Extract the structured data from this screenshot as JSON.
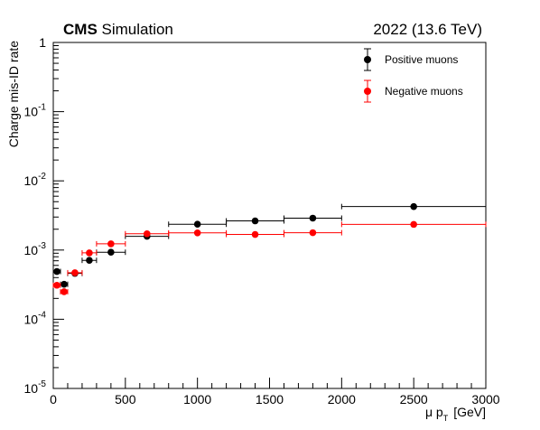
{
  "chart_data": {
    "type": "scatter",
    "header": {
      "experiment": "CMS",
      "label": "Simulation",
      "energy": "2022 (13.6 TeV)"
    },
    "xlabel": "μ p",
    "xlabel_subscript": "T",
    "xlabel_unit": "[GeV]",
    "ylabel": "Charge mis-ID rate",
    "xlim": [
      0,
      3000
    ],
    "ylim": [
      1e-05,
      1
    ],
    "yscale": "log",
    "x_tick_labels": [
      "0",
      "500",
      "1000",
      "1500",
      "2000",
      "2500",
      "3000"
    ],
    "y_tick_labels": [
      {
        "base": "10",
        "exp": "-5"
      },
      {
        "base": "10",
        "exp": "-4"
      },
      {
        "base": "10",
        "exp": "-3"
      },
      {
        "base": "10",
        "exp": "-2"
      },
      {
        "base": "10",
        "exp": "-1"
      },
      {
        "base": "1",
        "exp": ""
      }
    ],
    "grid": false,
    "legend_position": "top-right",
    "series": [
      {
        "name": "Positive muons",
        "color": "#000000",
        "points": [
          {
            "x": 25,
            "xlo": 0,
            "xhi": 50,
            "y": 0.00049
          },
          {
            "x": 75,
            "xlo": 50,
            "xhi": 100,
            "y": 0.00032
          },
          {
            "x": 150,
            "xlo": 100,
            "xhi": 200,
            "y": 0.00046
          },
          {
            "x": 250,
            "xlo": 200,
            "xhi": 300,
            "y": 0.00071
          },
          {
            "x": 400,
            "xlo": 300,
            "xhi": 500,
            "y": 0.00093
          },
          {
            "x": 650,
            "xlo": 500,
            "xhi": 800,
            "y": 0.00158
          },
          {
            "x": 1000,
            "xlo": 800,
            "xhi": 1200,
            "y": 0.00236
          },
          {
            "x": 1400,
            "xlo": 1200,
            "xhi": 1600,
            "y": 0.00264
          },
          {
            "x": 1800,
            "xlo": 1600,
            "xhi": 2000,
            "y": 0.00289
          },
          {
            "x": 2500,
            "xlo": 2000,
            "xhi": 3000,
            "y": 0.00425
          }
        ]
      },
      {
        "name": "Negative muons",
        "color": "#ff0000",
        "points": [
          {
            "x": 25,
            "xlo": 0,
            "xhi": 50,
            "y": 0.00031
          },
          {
            "x": 75,
            "xlo": 50,
            "xhi": 100,
            "y": 0.00025
          },
          {
            "x": 150,
            "xlo": 100,
            "xhi": 200,
            "y": 0.00047
          },
          {
            "x": 250,
            "xlo": 200,
            "xhi": 300,
            "y": 0.00091
          },
          {
            "x": 400,
            "xlo": 300,
            "xhi": 500,
            "y": 0.00123
          },
          {
            "x": 650,
            "xlo": 500,
            "xhi": 800,
            "y": 0.00172
          },
          {
            "x": 1000,
            "xlo": 800,
            "xhi": 1200,
            "y": 0.00177
          },
          {
            "x": 1400,
            "xlo": 1200,
            "xhi": 1600,
            "y": 0.00168
          },
          {
            "x": 1800,
            "xlo": 1600,
            "xhi": 2000,
            "y": 0.00178
          },
          {
            "x": 2500,
            "xlo": 2000,
            "xhi": 3000,
            "y": 0.00235
          }
        ]
      }
    ]
  }
}
